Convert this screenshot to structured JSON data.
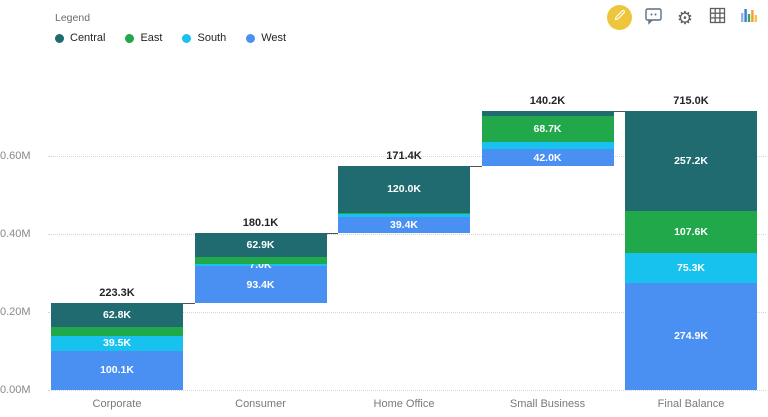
{
  "legend": {
    "title": "Legend",
    "items": [
      {
        "label": "Central",
        "color": "#1F6B70"
      },
      {
        "label": "East",
        "color": "#20A84A"
      },
      {
        "label": "South",
        "color": "#18C2EE"
      },
      {
        "label": "West",
        "color": "#4A90F2"
      }
    ]
  },
  "toolbar": {
    "edit_button_color": "#EDC63B",
    "icons": [
      "edit-pencil-icon",
      "comments-icon",
      "settings-gear-icon",
      "grid-view-icon",
      "chart-visual-icon"
    ]
  },
  "chart_data": {
    "type": "bar",
    "subtype": "waterfall-stacked",
    "title": "",
    "xlabel": "",
    "ylabel": "",
    "categories": [
      "Corporate",
      "Consumer",
      "Home Office",
      "Small Business",
      "Final Balance"
    ],
    "series_order_bottom_to_top": [
      "West",
      "South",
      "East",
      "Central"
    ],
    "series_colors": {
      "Central": "#1F6B70",
      "East": "#20A84A",
      "South": "#18C2EE",
      "West": "#4A90F2"
    },
    "y_axis": {
      "tick_labels": [
        "0.00M",
        "0.20M",
        "0.40M",
        "0.60M"
      ],
      "tick_values_k": [
        0,
        200,
        400,
        600
      ],
      "grid": "dotted"
    },
    "legend_position": "top-left",
    "columns": [
      {
        "category": "Corporate",
        "total_label": "223.3K",
        "is_total": false,
        "segments": [
          {
            "name": "West",
            "value_k": 100.1,
            "label": "100.1K"
          },
          {
            "name": "South",
            "value_k": 39.5,
            "label": "39.5K"
          },
          {
            "name": "East",
            "value_k": 20.9,
            "label": ""
          },
          {
            "name": "Central",
            "value_k": 62.8,
            "label": "62.8K"
          }
        ]
      },
      {
        "category": "Consumer",
        "total_label": "180.1K",
        "is_total": false,
        "segments": [
          {
            "name": "West",
            "value_k": 93.4,
            "label": "93.4K"
          },
          {
            "name": "South",
            "value_k": 7.0,
            "label": "7.0K"
          },
          {
            "name": "East",
            "value_k": 16.8,
            "label": ""
          },
          {
            "name": "Central",
            "value_k": 62.9,
            "label": "62.9K"
          }
        ]
      },
      {
        "category": "Home Office",
        "total_label": "171.4K",
        "is_total": false,
        "segments": [
          {
            "name": "West",
            "value_k": 39.4,
            "label": "39.4K"
          },
          {
            "name": "South",
            "value_k": 10.8,
            "label": ""
          },
          {
            "name": "East",
            "value_k": 1.2,
            "label": ""
          },
          {
            "name": "Central",
            "value_k": 120.0,
            "label": "120.0K"
          }
        ]
      },
      {
        "category": "Small Business",
        "total_label": "140.2K",
        "is_total": false,
        "segments": [
          {
            "name": "West",
            "value_k": 42.0,
            "label": "42.0K"
          },
          {
            "name": "South",
            "value_k": 18.0,
            "label": ""
          },
          {
            "name": "East",
            "value_k": 68.7,
            "label": "68.7K"
          },
          {
            "name": "Central",
            "value_k": 11.5,
            "label": ""
          }
        ]
      },
      {
        "category": "Final Balance",
        "total_label": "715.0K",
        "is_total": true,
        "segments": [
          {
            "name": "West",
            "value_k": 274.9,
            "label": "274.9K"
          },
          {
            "name": "South",
            "value_k": 75.3,
            "label": "75.3K"
          },
          {
            "name": "East",
            "value_k": 107.6,
            "label": "107.6K"
          },
          {
            "name": "Central",
            "value_k": 257.2,
            "label": "257.2K"
          }
        ]
      }
    ]
  }
}
